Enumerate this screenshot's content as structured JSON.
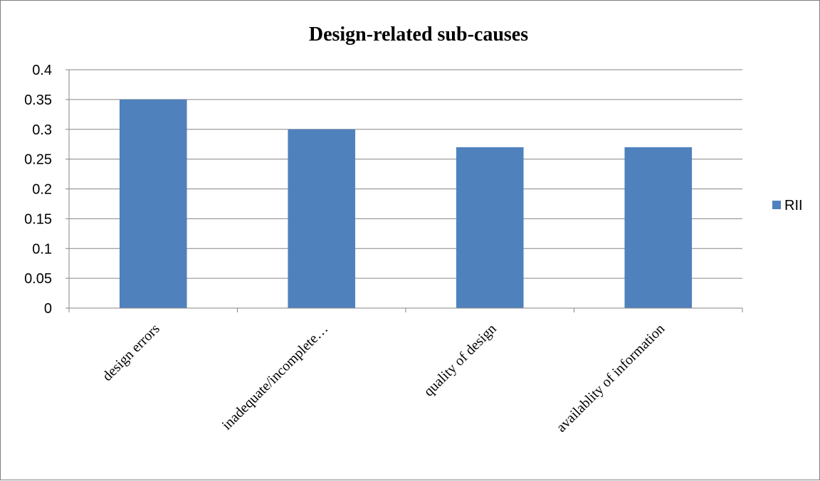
{
  "chart_data": {
    "type": "bar",
    "title": "Design-related sub-causes",
    "xlabel": "",
    "ylabel": "",
    "categories": [
      "design errors",
      "inadequate/incomplete…",
      "quality of design",
      "availablity of information"
    ],
    "series": [
      {
        "name": "RII",
        "values": [
          0.35,
          0.3,
          0.27,
          0.27
        ],
        "color": "#4f81bd"
      }
    ],
    "ylim": [
      0,
      0.4
    ],
    "yticks": [
      "0",
      "0.05",
      "0.1",
      "0.15",
      "0.2",
      "0.25",
      "0.3",
      "0.35",
      "0.4"
    ],
    "grid": true,
    "legend_position": "right"
  }
}
